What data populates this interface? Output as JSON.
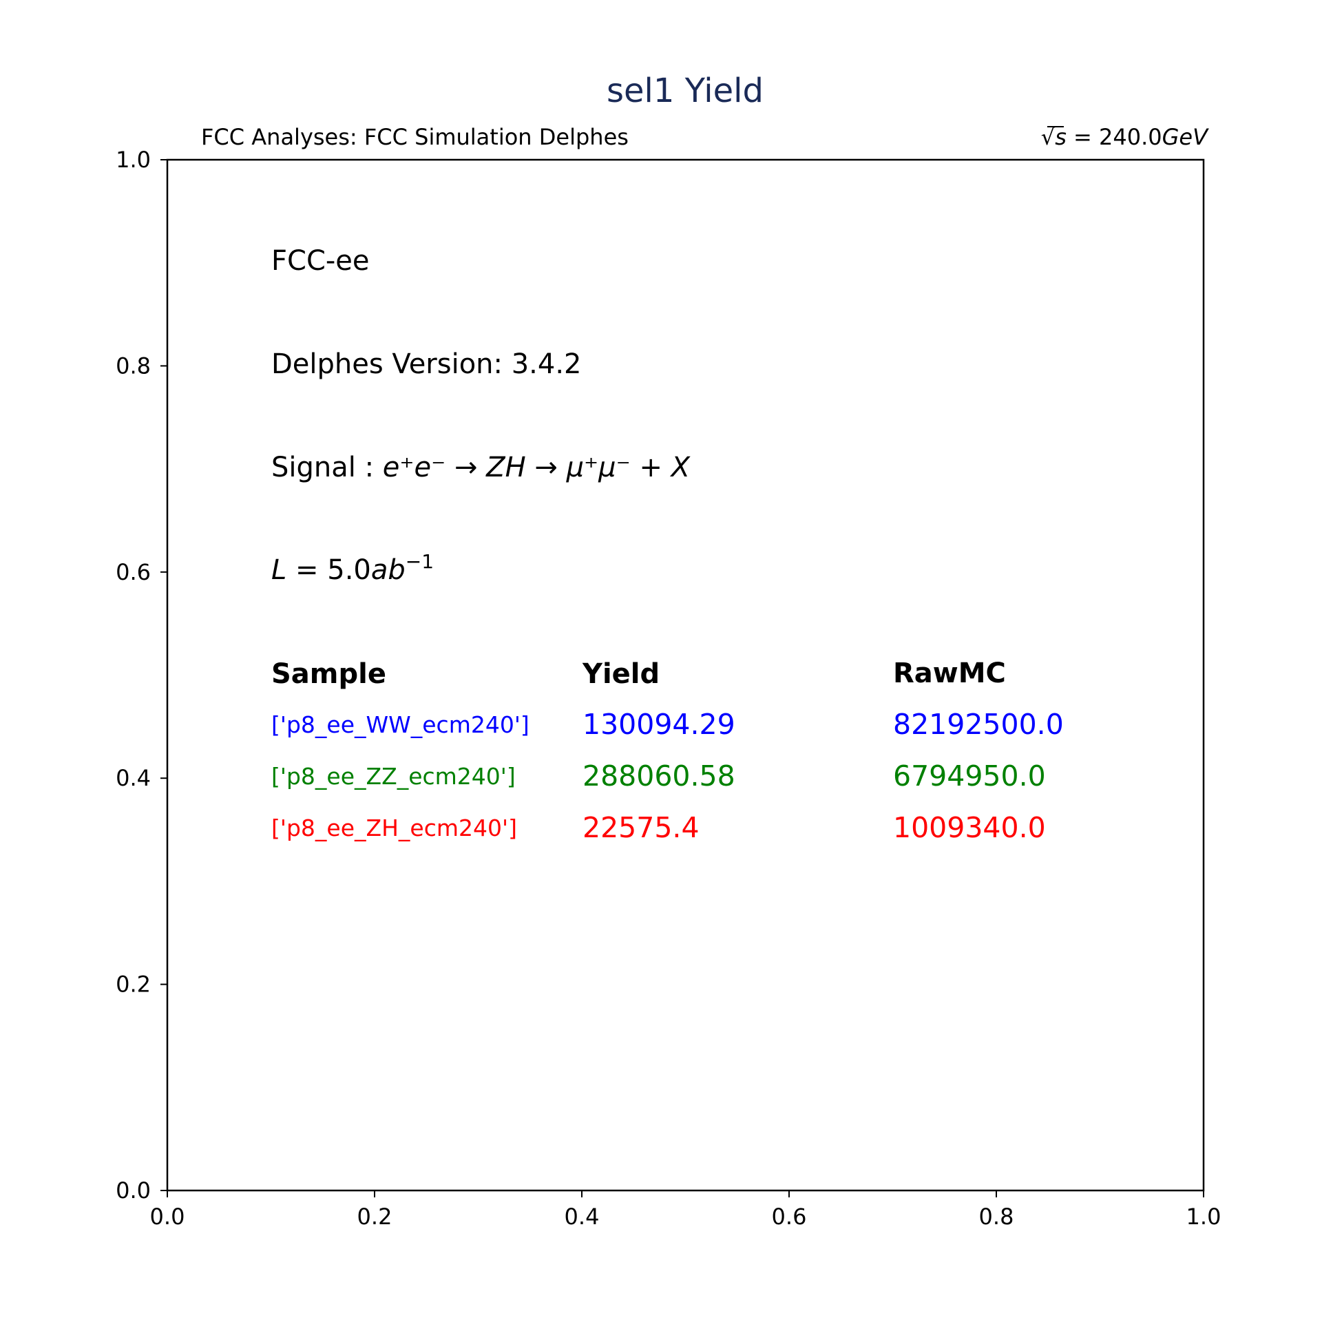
{
  "chart_data": {
    "type": "table",
    "title": "sel1 Yield",
    "header_left": "FCC Analyses: FCC Simulation Delphes",
    "header_right": {
      "sqrt": "√",
      "s": "s",
      "eq": " = 240.0",
      "unit": "GeV"
    },
    "xlim": [
      0,
      1
    ],
    "ylim": [
      0,
      1
    ],
    "x_ticks": [
      "0.0",
      "0.2",
      "0.4",
      "0.6",
      "0.8",
      "1.0"
    ],
    "y_ticks": [
      "0.0",
      "0.2",
      "0.4",
      "0.6",
      "0.8",
      "1.0"
    ],
    "grid": false,
    "info_lines": {
      "detector": "FCC-ee",
      "delphes_version": "Delphes Version: 3.4.2",
      "signal_prefix": "Signal : ",
      "signal_process": "e⁺e⁻ → ZH → μ⁺μ⁻ + X",
      "luminosity": {
        "L": "L",
        "eq": " = 5.0",
        "unit": "ab",
        "exp": "−1"
      }
    },
    "columns": [
      "Sample",
      "Yield",
      "RawMC"
    ],
    "rows": [
      {
        "sample": "['p8_ee_WW_ecm240']",
        "yield": "130094.29",
        "rawmc": "82192500.0",
        "color": "#0000ff"
      },
      {
        "sample": "['p8_ee_ZZ_ecm240']",
        "yield": "288060.58",
        "rawmc": "6794950.0",
        "color": "#008000"
      },
      {
        "sample": "['p8_ee_ZH_ecm240']",
        "yield": "22575.4",
        "rawmc": "1009340.0",
        "color": "#ff0000"
      }
    ]
  },
  "colors": {
    "title": "#1a2a57",
    "axis": "#000000"
  }
}
